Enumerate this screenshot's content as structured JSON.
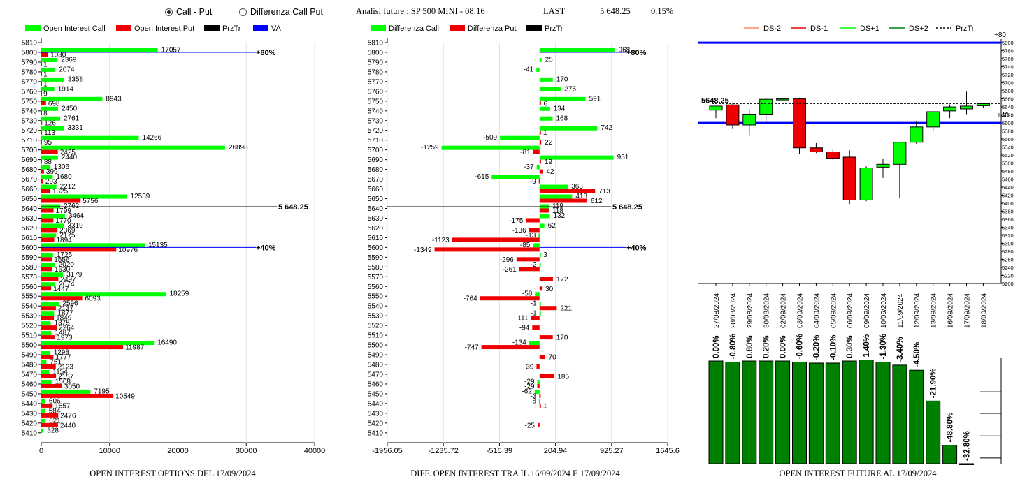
{
  "header": {
    "radio_call_put": "Call - Put",
    "radio_diff": "Differenza Call Put",
    "analysis": "Analisi future : SP 500 MINI - 08:16",
    "last_label": "LAST",
    "last_value": "5 648.25",
    "last_pct": "0.15%"
  },
  "colors": {
    "green": "#00ff00",
    "red": "#ee0000",
    "black": "#000000",
    "blue": "#0000ff",
    "dkgreen": "#008000"
  },
  "chart_data": [
    {
      "type": "bar",
      "title": "OPEN INTEREST OPTIONS DEL 17/09/2024",
      "legend": [
        "Open Interest Call",
        "Open Interest Put",
        "PrzTr",
        "VA"
      ],
      "strikes": [
        5810,
        5800,
        5790,
        5780,
        5770,
        5760,
        5750,
        5740,
        5730,
        5720,
        5710,
        5700,
        5690,
        5680,
        5670,
        5660,
        5650,
        5640,
        5630,
        5620,
        5610,
        5600,
        5590,
        5580,
        5570,
        5560,
        5550,
        5540,
        5530,
        5520,
        5510,
        5500,
        5490,
        5480,
        5470,
        5460,
        5450,
        5440,
        5430,
        5420,
        5410
      ],
      "series": [
        {
          "name": "Open Interest Call",
          "values": [
            null,
            17057,
            2369,
            2074,
            3358,
            1914,
            8943,
            2450,
            2761,
            3331,
            14266,
            26898,
            2440,
            1306,
            1680,
            2212,
            12539,
            2762,
            3464,
            3319,
            2175,
            15135,
            1725,
            2020,
            3179,
            2074,
            18259,
            2596,
            1877,
            1375,
            1487,
            16490,
            1298,
            751,
            1154,
            1508,
            7195,
            606,
            584,
            621,
            328
          ]
        },
        {
          "name": "Open Interest Put",
          "values": [
            null,
            1030,
            1,
            1,
            1,
            9,
            698,
            8,
            126,
            113,
            95,
            2425,
            88,
            399,
            293,
            1325,
            5756,
            1799,
            1770,
            2369,
            1894,
            10976,
            1556,
            1630,
            2497,
            1447,
            6093,
            2137,
            1849,
            2264,
            1973,
            11987,
            1777,
            2123,
            2157,
            3050,
            10549,
            1657,
            2476,
            2440,
            null
          ]
        }
      ],
      "xticks": [
        "0",
        "10000",
        "20000",
        "30000",
        "40000"
      ],
      "xlim": [
        0,
        40000
      ],
      "price": "5 648.25",
      "lines": [
        {
          "strike": 5800,
          "label": "+80%"
        },
        {
          "strike": 5600,
          "label": "+40%"
        }
      ]
    },
    {
      "type": "bar",
      "title": "DIFF. OPEN INTEREST TRA IL 16/09/2024 E 17/09/2024",
      "legend": [
        "Differenza Call",
        "Differenza Put",
        "PrzTr"
      ],
      "strikes": [
        5810,
        5800,
        5790,
        5780,
        5770,
        5760,
        5750,
        5740,
        5730,
        5720,
        5710,
        5700,
        5690,
        5680,
        5670,
        5660,
        5650,
        5640,
        5630,
        5620,
        5610,
        5600,
        5590,
        5580,
        5570,
        5560,
        5550,
        5540,
        5530,
        5520,
        5510,
        5500,
        5490,
        5480,
        5470,
        5460,
        5450,
        5440,
        5430,
        5420,
        5410
      ],
      "series": [
        {
          "name": "Differenza Call",
          "values": [
            null,
            968,
            25,
            -41,
            170,
            275,
            591,
            134,
            168,
            742,
            -509,
            -1259,
            951,
            -37,
            -615,
            363,
            418,
            119,
            132,
            62,
            -13,
            -85,
            3,
            -2,
            null,
            null,
            -58,
            -1,
            -1,
            null,
            null,
            -134,
            null,
            null,
            null,
            -29,
            -62,
            -8,
            null,
            null,
            null
          ]
        },
        {
          "name": "Differenza Put",
          "values": [
            null,
            null,
            null,
            null,
            null,
            null,
            6,
            null,
            null,
            1,
            22,
            -81,
            19,
            42,
            -9,
            713,
            612,
            118,
            -175,
            -136,
            -1123,
            -1349,
            -296,
            -261,
            172,
            30,
            -764,
            221,
            -111,
            -94,
            170,
            -747,
            70,
            -39,
            185,
            -29,
            -3,
            1,
            null,
            -25,
            null
          ]
        }
      ],
      "xticks": [
        "-1956.05",
        "-1235.72",
        "-515.39",
        "204.94",
        "925.27",
        "1645.6"
      ],
      "xlim": [
        -1956.05,
        1645.6
      ],
      "price": "5 648.25",
      "lines": [
        {
          "strike": 5800,
          "label": "+80%"
        },
        {
          "strike": 5600,
          "label": "+40%"
        }
      ]
    },
    {
      "type": "candlestick",
      "legend": [
        "DS-2",
        "DS-1",
        "DS+1",
        "DS+2",
        "PrzTr"
      ],
      "dates": [
        "27/08/2024",
        "28/08/2024",
        "29/08/2024",
        "30/08/2024",
        "02/09/2024",
        "03/09/2024",
        "04/09/2024",
        "05/09/2024",
        "06/09/2024",
        "09/09/2024",
        "10/09/2024",
        "11/09/2024",
        "12/09/2024",
        "13/09/2024",
        "16/09/2024",
        "17/09/2024",
        "18/09/2024"
      ],
      "ohlc": [
        [
          5632,
          5643,
          5612,
          5642
        ],
        [
          5645,
          5650,
          5585,
          5595
        ],
        [
          5595,
          5632,
          5568,
          5622
        ],
        [
          5622,
          5662,
          5600,
          5659
        ],
        [
          5660,
          5661,
          5658,
          5660
        ],
        [
          5660,
          5663,
          5522,
          5538
        ],
        [
          5538,
          5550,
          5525,
          5528
        ],
        [
          5528,
          5535,
          5508,
          5512
        ],
        [
          5515,
          5532,
          5398,
          5408
        ],
        [
          5408,
          5492,
          5405,
          5488
        ],
        [
          5490,
          5510,
          5463,
          5497
        ],
        [
          5497,
          5551,
          5412,
          5552
        ],
        [
          5552,
          5605,
          5548,
          5590
        ],
        [
          5590,
          5630,
          5580,
          5628
        ],
        [
          5630,
          5646,
          5612,
          5640
        ],
        [
          5635,
          5678,
          5622,
          5642
        ],
        [
          5643,
          5650,
          5638,
          5648
        ]
      ],
      "ylim": [
        5200,
        5810
      ],
      "yticks": [
        5800,
        5780,
        5760,
        5740,
        5720,
        5700,
        5680,
        5660,
        5640,
        5620,
        5600,
        5580,
        5560,
        5540,
        5520,
        5500,
        5480,
        5460,
        5440,
        5420,
        5400,
        5380,
        5360,
        5340,
        5320,
        5300,
        5280,
        5260,
        5240,
        5220,
        5200
      ],
      "price": "5648.25",
      "lines": [
        {
          "value": 5800,
          "label": "+80"
        },
        {
          "value": 5600,
          "label": "+40"
        }
      ]
    },
    {
      "type": "bar",
      "title": "OPEN INTEREST FUTURE AL 17/09/2024",
      "categories": [
        "27/08/2024",
        "28/08/2024",
        "29/08/2024",
        "30/08/2024",
        "02/09/2024",
        "03/09/2024",
        "04/09/2024",
        "05/09/2024",
        "06/09/2024",
        "09/09/2024",
        "10/09/2024",
        "11/09/2024",
        "12/09/2024",
        "13/09/2024",
        "16/09/2024",
        "17/09/2024",
        "18/09/2024"
      ],
      "values": [
        100,
        99,
        100,
        100,
        100,
        99,
        98,
        98,
        100,
        101,
        99,
        96,
        91,
        61,
        18,
        -1,
        null
      ],
      "labels": [
        "0.00%",
        "-0.80%",
        "0.80%",
        "0.20%",
        "0.00%",
        "-0.60%",
        "-0.20%",
        "-0.10%",
        "0.30%",
        "1.40%",
        "-1.30%",
        "-3.40%",
        "-4.50%",
        "-21.90%",
        "-48.80%",
        "-32.80%",
        ""
      ]
    }
  ]
}
